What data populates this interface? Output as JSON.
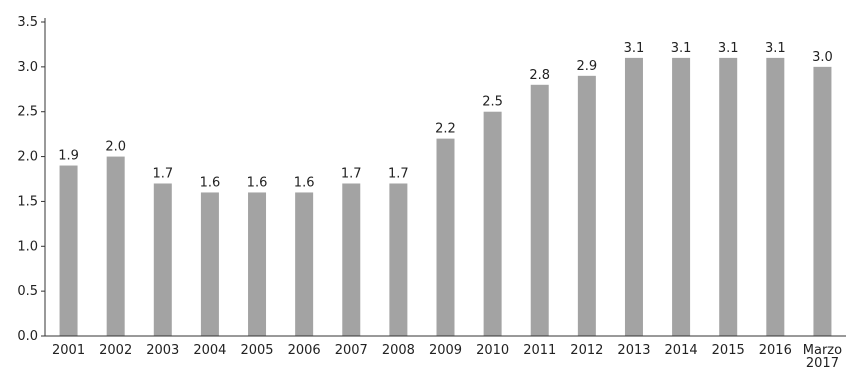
{
  "chart_data": {
    "type": "bar",
    "categories": [
      "2001",
      "2002",
      "2003",
      "2004",
      "2005",
      "2006",
      "2007",
      "2008",
      "2009",
      "2010",
      "2011",
      "2012",
      "2013",
      "2014",
      "2015",
      "2016",
      "Marzo 2017"
    ],
    "values": [
      1.9,
      2.0,
      1.7,
      1.6,
      1.6,
      1.6,
      1.7,
      1.7,
      2.2,
      2.5,
      2.8,
      2.9,
      3.1,
      3.1,
      3.1,
      3.1,
      3.0
    ],
    "data_labels": [
      "1.9",
      "2.0",
      "1.7",
      "1.6",
      "1.6",
      "1.6",
      "1.7",
      "1.7",
      "2.2",
      "2.5",
      "2.8",
      "2.9",
      "3.1",
      "3.1",
      "3.1",
      "3.1",
      "3.0"
    ],
    "y_ticks": [
      "0.0",
      "0.5",
      "1.0",
      "1.5",
      "2.0",
      "2.5",
      "3.0",
      "3.5"
    ],
    "ylim": [
      0,
      3.5
    ],
    "grid": false,
    "legend": "none",
    "bar_color": "#a3a3a3",
    "axis_color": "#333333"
  }
}
